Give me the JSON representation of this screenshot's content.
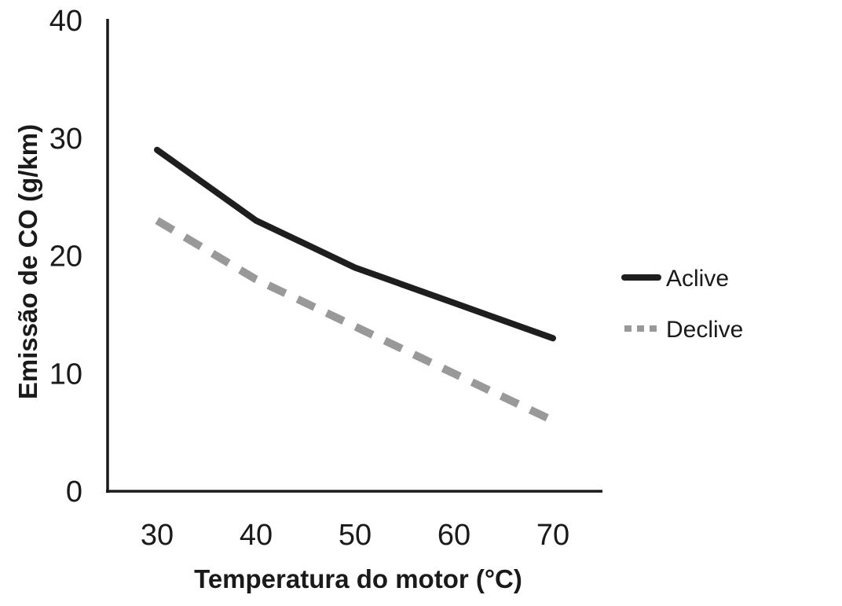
{
  "chart_data": {
    "type": "line",
    "title": "",
    "xlabel": "Temperatura do motor (°C)",
    "ylabel": "Emissão de CO (g/km)",
    "x": [
      30,
      40,
      50,
      60,
      70
    ],
    "xlim": [
      25,
      75
    ],
    "ylim": [
      0,
      40
    ],
    "yticks": [
      0,
      10,
      20,
      30,
      40
    ],
    "grid": false,
    "legend_position": "right",
    "series": [
      {
        "name": "Aclive",
        "values": [
          29,
          23,
          19,
          16,
          13
        ],
        "color": "#1e1e1e",
        "style": "solid"
      },
      {
        "name": "Declive",
        "values": [
          23,
          18,
          14,
          10,
          6
        ],
        "color": "#999999",
        "style": "dashed"
      }
    ]
  }
}
